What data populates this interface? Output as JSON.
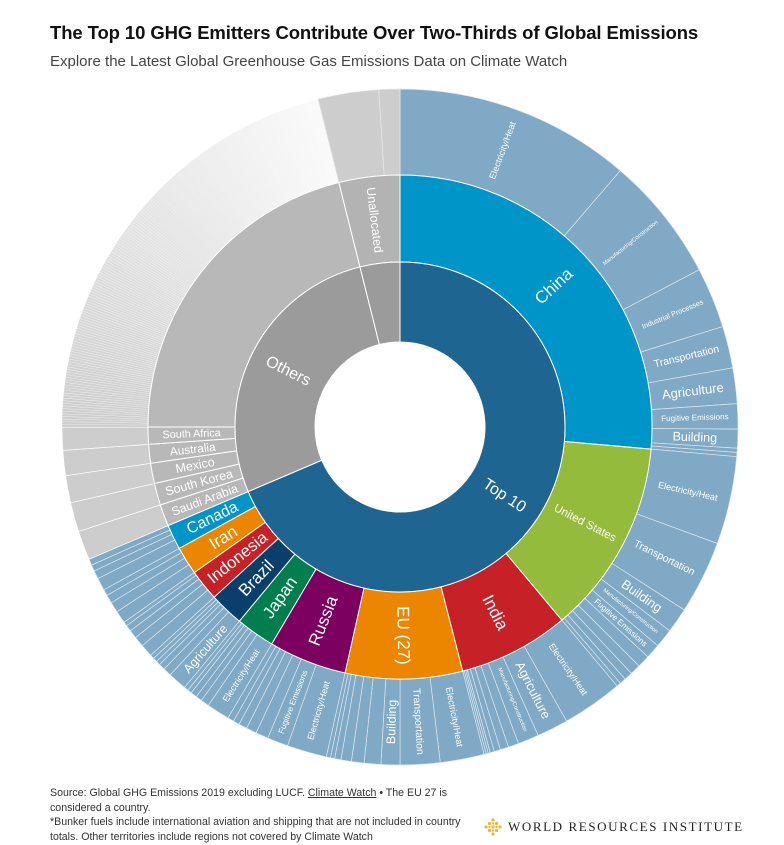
{
  "header": {
    "title": "The Top 10 GHG Emitters Contribute Over Two-Thirds of Global Emissions",
    "subtitle": "Explore the Latest Global Greenhouse Gas Emissions Data on Climate Watch"
  },
  "footer": {
    "source": "Source: Global GHG Emissions 2019 excluding LUCF.",
    "link": "Climate Watch",
    "eu_note": "• The EU 27 is considered a country.",
    "bunker_note": "*Bunker fuels include international aviation and shipping that are not included in country totals. Other territories include regions not covered by Climate Watch",
    "logo_text": "WORLD RESOURCES INSTITUTE"
  },
  "colors": {
    "top10": "#1f6591",
    "others": "#9b9b9b",
    "others_country": "#b8b8b8",
    "sector": "#7fa9c4",
    "others_sector": "#cdcdcd",
    "logo": "#f2b630"
  },
  "chart_data": {
    "type": "sunburst",
    "unit": "percent of global GHG emissions (approx.)",
    "groups": [
      {
        "name": "Top 10",
        "color": "#1f6591",
        "children": [
          {
            "name": "China",
            "color": "#0095c8",
            "sectors": [
              {
                "name": "Electricity/Heat",
                "value": 11.3
              },
              {
                "name": "Manufacturing/Construction",
                "value": 6.0
              },
              {
                "name": "Industrial Processes",
                "value": 2.9
              },
              {
                "name": "Transportation",
                "value": 2.0
              },
              {
                "name": "Agriculture",
                "value": 1.7
              },
              {
                "name": "Fugitive Emissions",
                "value": 1.2
              },
              {
                "name": "Building",
                "value": 0.9
              },
              {
                "name": "",
                "value": 0.2
              },
              {
                "name": "",
                "value": 0.2
              }
            ]
          },
          {
            "name": "United States",
            "color": "#95bb3c",
            "sectors": [
              {
                "name": "Electricity/Heat",
                "value": 4.2
              },
              {
                "name": "Transportation",
                "value": 3.5
              },
              {
                "name": "Building",
                "value": 1.2
              },
              {
                "name": "Manufacturing/Construction",
                "value": 0.9
              },
              {
                "name": "Fugitive Emissions",
                "value": 0.7
              },
              {
                "name": "",
                "value": 0.6
              },
              {
                "name": "",
                "value": 0.5
              },
              {
                "name": "",
                "value": 0.4
              },
              {
                "name": "",
                "value": 0.3
              },
              {
                "name": "",
                "value": 0.2
              }
            ]
          },
          {
            "name": "India",
            "color": "#c62127",
            "sectors": [
              {
                "name": "Electricity/Heat",
                "value": 2.9
              },
              {
                "name": "Agriculture",
                "value": 1.5
              },
              {
                "name": "Manufacturing/Construction",
                "value": 1.0
              },
              {
                "name": "",
                "value": 0.5
              },
              {
                "name": "",
                "value": 0.4
              },
              {
                "name": "",
                "value": 0.3
              },
              {
                "name": "",
                "value": 0.2
              },
              {
                "name": "",
                "value": 0.1
              },
              {
                "name": "",
                "value": 0.1
              },
              {
                "name": "",
                "value": 0.1
              }
            ]
          },
          {
            "name": "EU (27)",
            "color": "#ec8600",
            "sectors": [
              {
                "name": "Electricity/Heat",
                "value": 2.1
              },
              {
                "name": "Transportation",
                "value": 1.9
              },
              {
                "name": "Building",
                "value": 0.9
              },
              {
                "name": "",
                "value": 0.8
              },
              {
                "name": "",
                "value": 0.6
              },
              {
                "name": "",
                "value": 0.5
              },
              {
                "name": "",
                "value": 0.3
              },
              {
                "name": "",
                "value": 0.2
              },
              {
                "name": "",
                "value": 0.2
              }
            ]
          },
          {
            "name": "Russia",
            "color": "#7b0060",
            "sectors": [
              {
                "name": "Electricity/Heat",
                "value": 1.9
              },
              {
                "name": "Fugitive Emissions",
                "value": 1.0
              },
              {
                "name": "",
                "value": 0.6
              },
              {
                "name": "",
                "value": 0.5
              },
              {
                "name": "",
                "value": 0.4
              },
              {
                "name": "",
                "value": 0.3
              },
              {
                "name": "",
                "value": 0.3
              }
            ]
          },
          {
            "name": "Japan",
            "color": "#007e4e",
            "sectors": [
              {
                "name": "Electricity/Heat",
                "value": 1.1
              },
              {
                "name": "",
                "value": 0.4
              },
              {
                "name": "",
                "value": 0.3
              },
              {
                "name": "",
                "value": 0.3
              },
              {
                "name": "",
                "value": 0.2
              },
              {
                "name": "",
                "value": 0.2
              }
            ]
          },
          {
            "name": "Brazil",
            "color": "#0b3f6b",
            "sectors": [
              {
                "name": "Agriculture",
                "value": 0.9
              },
              {
                "name": "",
                "value": 0.4
              },
              {
                "name": "",
                "value": 0.3
              },
              {
                "name": "",
                "value": 0.2
              },
              {
                "name": "",
                "value": 0.2
              },
              {
                "name": "",
                "value": 0.2
              }
            ]
          },
          {
            "name": "Indonesia",
            "color": "#c62127",
            "sectors": [
              {
                "name": "",
                "value": 0.6
              },
              {
                "name": "",
                "value": 0.5
              },
              {
                "name": "",
                "value": 0.4
              },
              {
                "name": "",
                "value": 0.3
              },
              {
                "name": "",
                "value": 0.2
              }
            ]
          },
          {
            "name": "Iran",
            "color": "#ec8600",
            "sectors": [
              {
                "name": "",
                "value": 0.6
              },
              {
                "name": "",
                "value": 0.5
              },
              {
                "name": "",
                "value": 0.4
              },
              {
                "name": "",
                "value": 0.3
              }
            ]
          },
          {
            "name": "Canada",
            "color": "#0095c8",
            "sectors": [
              {
                "name": "",
                "value": 0.6
              },
              {
                "name": "",
                "value": 0.4
              },
              {
                "name": "",
                "value": 0.3
              },
              {
                "name": "",
                "value": 0.3
              }
            ]
          }
        ]
      },
      {
        "name": "Others",
        "color": "#9b9b9b",
        "children": [
          {
            "name": "Saudi Arabia",
            "color": "#b8b8b8",
            "value": 1.4
          },
          {
            "name": "South Korea",
            "color": "#b8b8b8",
            "value": 1.4
          },
          {
            "name": "Mexico",
            "color": "#b8b8b8",
            "value": 1.3
          },
          {
            "name": "Australia",
            "color": "#b8b8b8",
            "value": 1.2
          },
          {
            "name": "South Africa",
            "color": "#b8b8b8",
            "value": 1.1
          },
          {
            "name": "",
            "color": "#b8b8b8",
            "value": 21.1,
            "split_count": 170
          }
        ]
      },
      {
        "name": "",
        "color": "#9b9b9b",
        "children": [
          {
            "name": "Unallocated",
            "color": "#b3b3b3",
            "sectors": [
              {
                "name": "",
                "value": 2.9
              },
              {
                "name": "",
                "value": 1.0
              }
            ]
          }
        ]
      }
    ]
  }
}
